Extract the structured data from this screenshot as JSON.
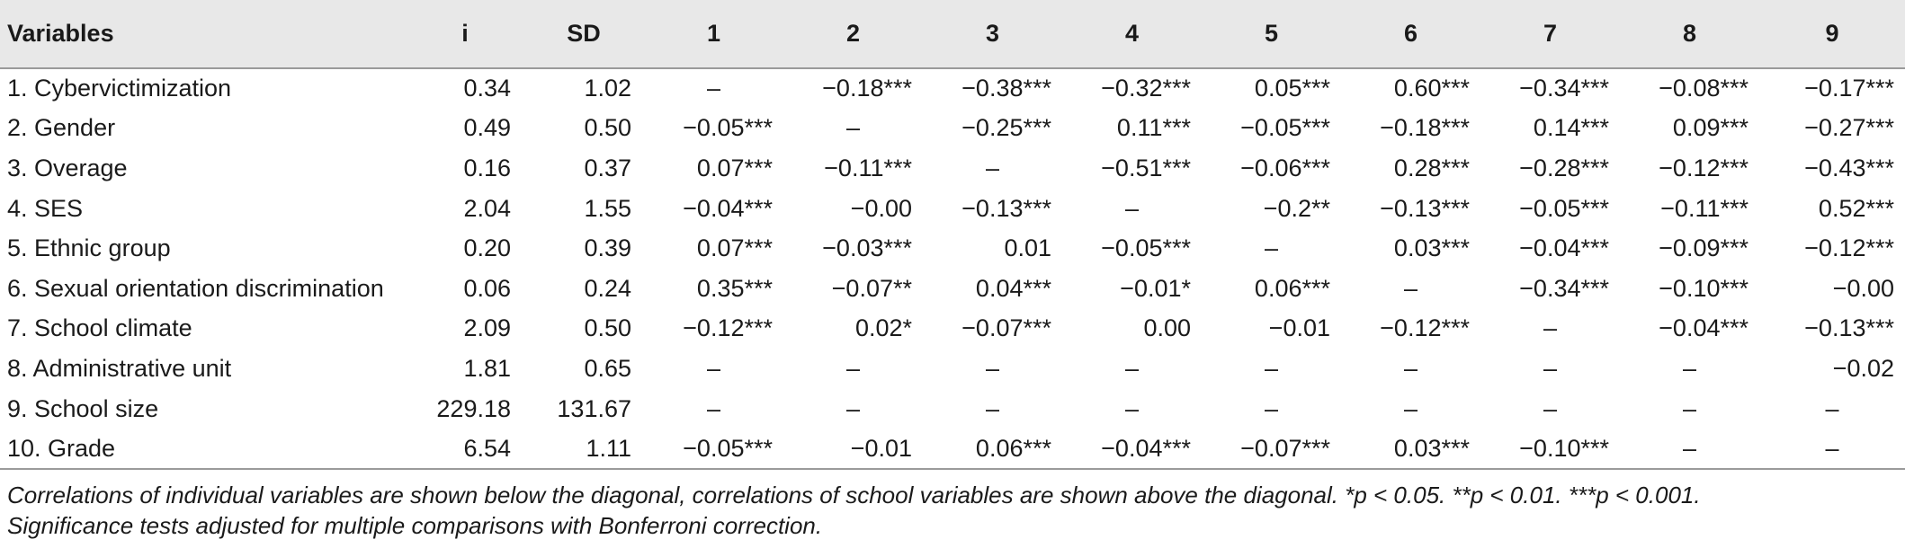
{
  "table": {
    "headers": [
      "Variables",
      "i",
      "SD",
      "1",
      "2",
      "3",
      "4",
      "5",
      "6",
      "7",
      "8",
      "9"
    ],
    "rows": [
      {
        "name": "1. Cybervictimization",
        "m": "0.34",
        "sd": "1.02",
        "c": [
          "–",
          "−0.18***",
          "−0.38***",
          "−0.32***",
          "0.05***",
          "0.60***",
          "−0.34***",
          "−0.08***",
          "−0.17***"
        ]
      },
      {
        "name": "2. Gender",
        "m": "0.49",
        "sd": "0.50",
        "c": [
          "−0.05***",
          "–",
          "−0.25***",
          "0.11***",
          "−0.05***",
          "−0.18***",
          "0.14***",
          "0.09***",
          "−0.27***"
        ]
      },
      {
        "name": "3. Overage",
        "m": "0.16",
        "sd": "0.37",
        "c": [
          "0.07***",
          "−0.11***",
          "–",
          "−0.51***",
          "−0.06***",
          "0.28***",
          "−0.28***",
          "−0.12***",
          "−0.43***"
        ]
      },
      {
        "name": "4. SES",
        "m": "2.04",
        "sd": "1.55",
        "c": [
          "−0.04***",
          "−0.00",
          "−0.13***",
          "–",
          "−0.2**",
          "−0.13***",
          "−0.05***",
          "−0.11***",
          "0.52***"
        ]
      },
      {
        "name": "5. Ethnic group",
        "m": "0.20",
        "sd": "0.39",
        "c": [
          "0.07***",
          "−0.03***",
          "0.01",
          "−0.05***",
          "–",
          "0.03***",
          "−0.04***",
          "−0.09***",
          "−0.12***"
        ]
      },
      {
        "name": "6. Sexual orientation discrimination",
        "m": "0.06",
        "sd": "0.24",
        "c": [
          "0.35***",
          "−0.07**",
          "0.04***",
          "−0.01*",
          "0.06***",
          "–",
          "−0.34***",
          "−0.10***",
          "−0.00"
        ]
      },
      {
        "name": "7. School climate",
        "m": "2.09",
        "sd": "0.50",
        "c": [
          "−0.12***",
          "0.02*",
          "−0.07***",
          "0.00",
          "−0.01",
          "−0.12***",
          "–",
          "−0.04***",
          "−0.13***"
        ]
      },
      {
        "name": "8. Administrative unit",
        "m": "1.81",
        "sd": "0.65",
        "c": [
          "–",
          "–",
          "–",
          "–",
          "–",
          "–",
          "–",
          "–",
          "−0.02"
        ]
      },
      {
        "name": "9. School size",
        "m": "229.18",
        "sd": "131.67",
        "c": [
          "–",
          "–",
          "–",
          "–",
          "–",
          "–",
          "–",
          "–",
          "–"
        ]
      },
      {
        "name": "10. Grade",
        "m": "6.54",
        "sd": "1.11",
        "c": [
          "−0.05***",
          "−0.01",
          "0.06***",
          "−0.04***",
          "−0.07***",
          "0.03***",
          "−0.10***",
          "–",
          "–"
        ]
      }
    ]
  },
  "note": {
    "line1": "Correlations of individual variables are shown below the diagonal, correlations of school variables are shown above the diagonal. *p < 0.05. **p < 0.01. ***p < 0.001.",
    "line2": "Significance tests adjusted for multiple comparisons with Bonferroni correction."
  }
}
